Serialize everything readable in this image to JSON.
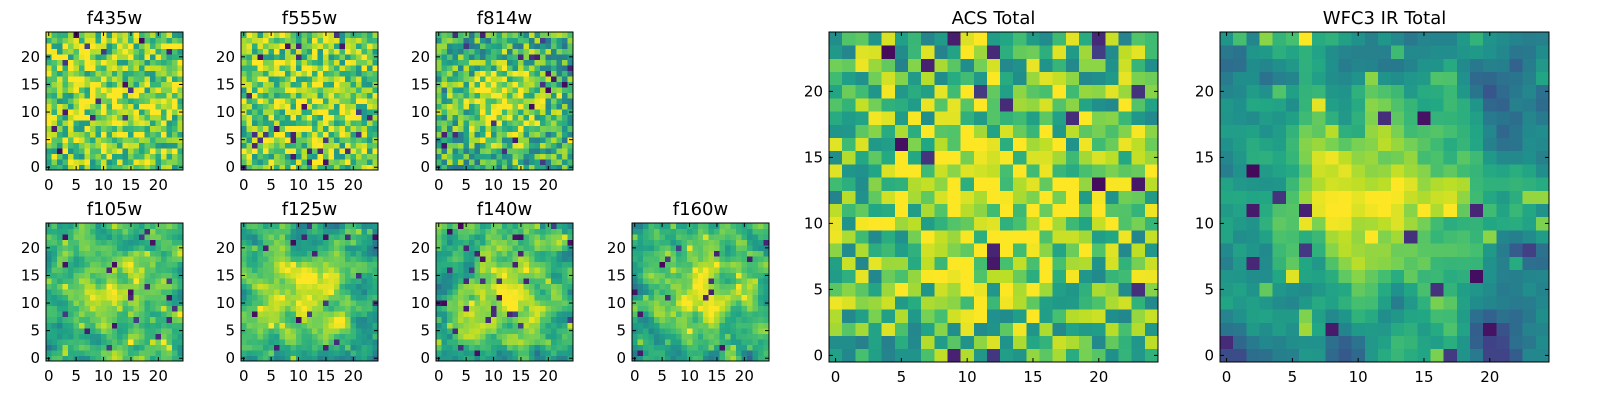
{
  "chart_data": [
    {
      "type": "heatmap",
      "title": "f435w",
      "grid_size": 25,
      "xlim": [
        0,
        24
      ],
      "ylim": [
        0,
        24
      ],
      "xticks": [
        0,
        5,
        10,
        15,
        20
      ],
      "yticks": [
        0,
        5,
        10,
        15,
        20
      ],
      "colormap": "viridis",
      "center_strength": 0.1,
      "hot_strength": 0.15,
      "noise_seed": 11,
      "blur": 0
    },
    {
      "type": "heatmap",
      "title": "f555w",
      "grid_size": 25,
      "xlim": [
        0,
        24
      ],
      "ylim": [
        0,
        24
      ],
      "xticks": [
        0,
        5,
        10,
        15,
        20
      ],
      "yticks": [
        0,
        5,
        10,
        15,
        20
      ],
      "colormap": "viridis",
      "center_strength": 0.1,
      "hot_strength": 0.15,
      "noise_seed": 23,
      "blur": 0
    },
    {
      "type": "heatmap",
      "title": "f814w",
      "grid_size": 25,
      "xlim": [
        0,
        24
      ],
      "ylim": [
        0,
        24
      ],
      "xticks": [
        0,
        5,
        10,
        15,
        20
      ],
      "yticks": [
        0,
        5,
        10,
        15,
        20
      ],
      "colormap": "viridis",
      "center_strength": 0.3,
      "hot_strength": 0.15,
      "noise_seed": 37,
      "blur": 0
    },
    {
      "type": "heatmap",
      "title": "f105w",
      "grid_size": 25,
      "xlim": [
        0,
        24
      ],
      "ylim": [
        0,
        24
      ],
      "xticks": [
        0,
        5,
        10,
        15,
        20
      ],
      "yticks": [
        0,
        5,
        10,
        15,
        20
      ],
      "colormap": "viridis",
      "center_strength": 0.25,
      "hot_strength": 0.2,
      "noise_seed": 41,
      "blur": 1
    },
    {
      "type": "heatmap",
      "title": "f125w",
      "grid_size": 25,
      "xlim": [
        0,
        24
      ],
      "ylim": [
        0,
        24
      ],
      "xticks": [
        0,
        5,
        10,
        15,
        20
      ],
      "yticks": [
        0,
        5,
        10,
        15,
        20
      ],
      "colormap": "viridis",
      "center_strength": 0.3,
      "hot_strength": 0.2,
      "noise_seed": 53,
      "blur": 1
    },
    {
      "type": "heatmap",
      "title": "f140w",
      "grid_size": 25,
      "xlim": [
        0,
        24
      ],
      "ylim": [
        0,
        24
      ],
      "xticks": [
        0,
        5,
        10,
        15,
        20
      ],
      "yticks": [
        0,
        5,
        10,
        15,
        20
      ],
      "colormap": "viridis",
      "center_strength": 0.3,
      "hot_strength": 0.2,
      "noise_seed": 67,
      "blur": 1
    },
    {
      "type": "heatmap",
      "title": "f160w",
      "grid_size": 25,
      "xlim": [
        0,
        24
      ],
      "ylim": [
        0,
        24
      ],
      "xticks": [
        0,
        5,
        10,
        15,
        20
      ],
      "yticks": [
        0,
        5,
        10,
        15,
        20
      ],
      "colormap": "viridis",
      "center_strength": 0.35,
      "hot_strength": 0.2,
      "noise_seed": 79,
      "blur": 1
    },
    {
      "type": "heatmap",
      "title": "ACS Total",
      "grid_size": 25,
      "xlim": [
        0,
        24
      ],
      "ylim": [
        0,
        24
      ],
      "xticks": [
        0,
        5,
        10,
        15,
        20
      ],
      "yticks": [
        0,
        5,
        10,
        15,
        20
      ],
      "colormap": "viridis",
      "center_strength": 0.2,
      "hot_strength": 0.15,
      "noise_seed": 97,
      "blur": 0
    },
    {
      "type": "heatmap",
      "title": "WFC3 IR Total",
      "grid_size": 25,
      "xlim": [
        0,
        24
      ],
      "ylim": [
        0,
        24
      ],
      "xticks": [
        0,
        5,
        10,
        15,
        20
      ],
      "yticks": [
        0,
        5,
        10,
        15,
        20
      ],
      "colormap": "viridis",
      "center_strength": 0.55,
      "hot_strength": 0.25,
      "noise_seed": 131,
      "blur": 1
    }
  ]
}
